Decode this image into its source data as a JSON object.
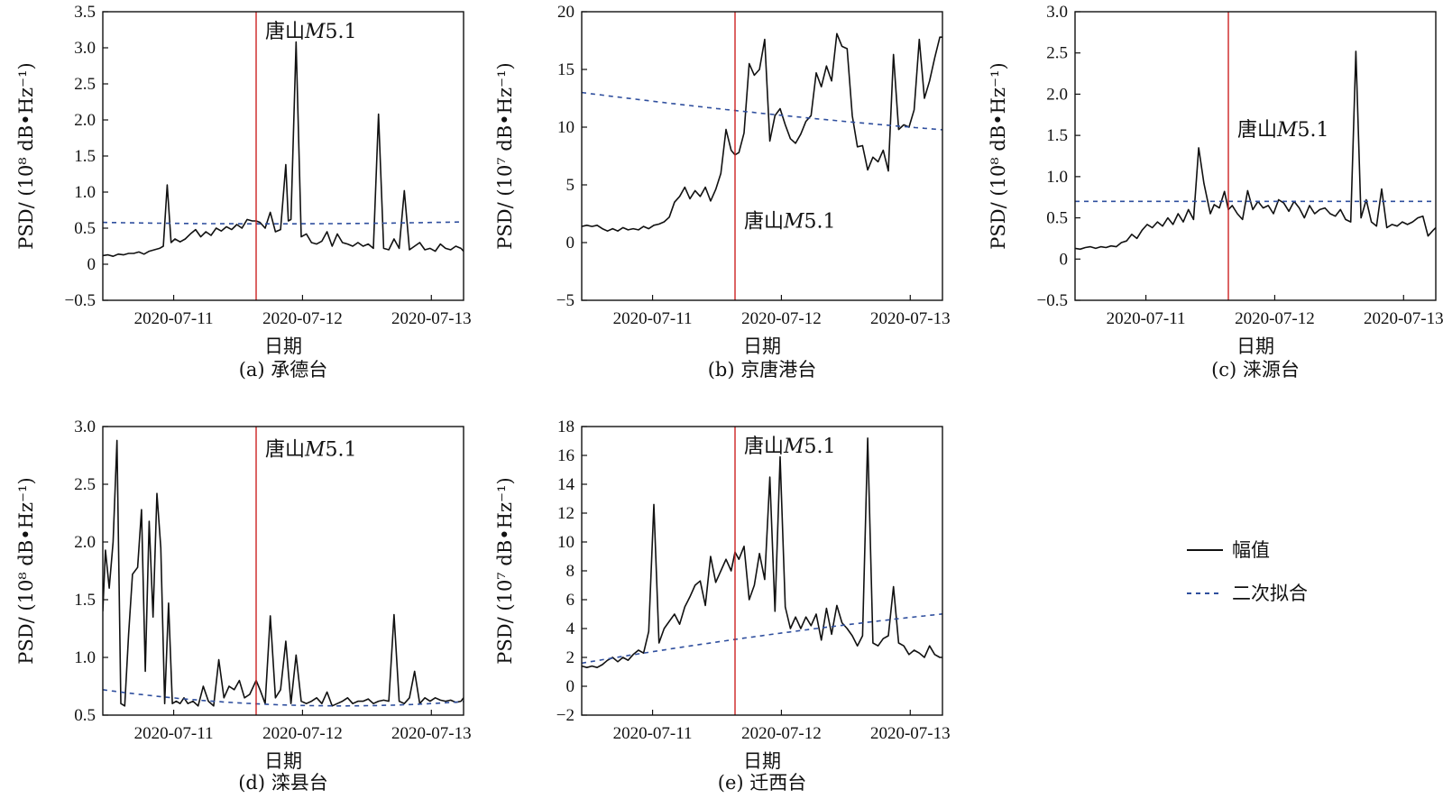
{
  "figure": {
    "legend": {
      "amplitude_label": "幅值",
      "fit_label": "二次拟合"
    },
    "colors": {
      "amplitude": "#111111",
      "fit": "#2f4f9e",
      "event": "#cc2222"
    }
  },
  "chart_data": [
    {
      "type": "line",
      "caption": "(a) 承德台",
      "xlabel": "日期",
      "ylabel": "PSD/ (10⁸ dB•Hz⁻¹)",
      "xticks": [
        "2020-07-11",
        "2020-07-12",
        "2020-07-13"
      ],
      "xtick_pos": [
        0.75,
        1.75,
        2.75
      ],
      "xlim": [
        0.2,
        3.0
      ],
      "ylim": [
        -0.5,
        3.5
      ],
      "yticks": [
        -0.5,
        0,
        0.5,
        1.0,
        1.5,
        2.0,
        2.5,
        3.0,
        3.5
      ],
      "yticklabels": [
        "−0.5",
        "0",
        "0.5",
        "1.0",
        "1.5",
        "2.0",
        "2.5",
        "3.0",
        "3.5"
      ],
      "event": {
        "x": 1.39,
        "label_prefix": "唐山",
        "label_mag": "M",
        "label_value": "5.1",
        "label_y": 3.24
      },
      "fit": [
        0,
        0.56,
        0.58,
        1.5
      ],
      "series": [
        {
          "x": [
            0.2,
            0.24,
            0.28,
            0.32,
            0.36,
            0.4,
            0.44,
            0.48,
            0.52,
            0.56,
            0.6,
            0.64,
            0.67,
            0.7,
            0.73,
            0.76,
            0.8,
            0.84,
            0.88,
            0.92,
            0.96,
            1.0,
            1.04,
            1.08,
            1.12,
            1.16,
            1.2,
            1.24,
            1.28,
            1.32,
            1.36,
            1.39,
            1.42,
            1.46,
            1.5,
            1.54,
            1.58,
            1.62,
            1.64,
            1.66,
            1.7,
            1.74,
            1.78,
            1.82,
            1.86,
            1.9,
            1.94,
            1.98,
            2.02,
            2.06,
            2.1,
            2.14,
            2.18,
            2.22,
            2.26,
            2.3,
            2.34,
            2.38,
            2.42,
            2.46,
            2.5,
            2.54,
            2.58,
            2.62,
            2.66,
            2.7,
            2.74,
            2.78,
            2.82,
            2.86,
            2.9,
            2.94,
            2.98,
            3.0
          ],
          "y": [
            0.12,
            0.13,
            0.11,
            0.14,
            0.13,
            0.15,
            0.15,
            0.17,
            0.14,
            0.18,
            0.2,
            0.22,
            0.25,
            1.1,
            0.3,
            0.35,
            0.31,
            0.35,
            0.42,
            0.48,
            0.38,
            0.45,
            0.4,
            0.5,
            0.46,
            0.52,
            0.48,
            0.55,
            0.5,
            0.62,
            0.6,
            0.6,
            0.58,
            0.5,
            0.72,
            0.45,
            0.48,
            1.38,
            0.6,
            0.62,
            3.08,
            0.38,
            0.42,
            0.3,
            0.28,
            0.32,
            0.45,
            0.25,
            0.42,
            0.3,
            0.28,
            0.25,
            0.3,
            0.25,
            0.28,
            0.22,
            2.08,
            0.22,
            0.2,
            0.35,
            0.22,
            1.02,
            0.2,
            0.25,
            0.3,
            0.2,
            0.22,
            0.18,
            0.28,
            0.22,
            0.2,
            0.25,
            0.22,
            0.18
          ]
        }
      ]
    },
    {
      "type": "line",
      "caption": "(b) 京唐港台",
      "xlabel": "日期",
      "ylabel": "PSD/ (10⁷ dB•Hz⁻¹)",
      "xticks": [
        "2020-07-11",
        "2020-07-12",
        "2020-07-13"
      ],
      "xtick_pos": [
        0.75,
        1.75,
        2.75
      ],
      "xlim": [
        0.2,
        3.0
      ],
      "ylim": [
        -5,
        20
      ],
      "yticks": [
        -5,
        0,
        5,
        10,
        15,
        20
      ],
      "yticklabels": [
        "−5",
        "0",
        "5",
        "10",
        "15",
        "20"
      ],
      "event": {
        "x": 1.39,
        "label_prefix": "唐山",
        "label_mag": "M",
        "label_value": "5.1",
        "label_y": 1.9
      },
      "fit": [
        0,
        7.8,
        13.0,
        7.5
      ],
      "series": [
        {
          "x": [
            0.2,
            0.24,
            0.28,
            0.32,
            0.36,
            0.4,
            0.44,
            0.48,
            0.52,
            0.56,
            0.6,
            0.64,
            0.68,
            0.72,
            0.76,
            0.8,
            0.84,
            0.88,
            0.92,
            0.96,
            1.0,
            1.04,
            1.08,
            1.12,
            1.16,
            1.2,
            1.24,
            1.28,
            1.32,
            1.36,
            1.39,
            1.42,
            1.46,
            1.5,
            1.54,
            1.58,
            1.62,
            1.66,
            1.7,
            1.74,
            1.78,
            1.82,
            1.86,
            1.9,
            1.94,
            1.98,
            2.02,
            2.06,
            2.1,
            2.14,
            2.18,
            2.22,
            2.26,
            2.3,
            2.34,
            2.38,
            2.42,
            2.46,
            2.5,
            2.54,
            2.58,
            2.62,
            2.66,
            2.7,
            2.74,
            2.78,
            2.82,
            2.86,
            2.9,
            2.94,
            2.98,
            3.0
          ],
          "y": [
            1.4,
            1.5,
            1.4,
            1.5,
            1.2,
            1.0,
            1.2,
            1.0,
            1.3,
            1.1,
            1.2,
            1.1,
            1.4,
            1.2,
            1.5,
            1.6,
            1.8,
            2.2,
            3.5,
            4.0,
            4.8,
            3.8,
            4.5,
            4.0,
            4.8,
            3.6,
            4.6,
            6.0,
            9.8,
            8.0,
            7.6,
            7.8,
            9.5,
            15.5,
            14.5,
            15.0,
            17.6,
            8.8,
            11.0,
            11.6,
            10.2,
            9.0,
            8.6,
            9.4,
            10.5,
            11.0,
            14.7,
            13.5,
            15.3,
            14.0,
            18.1,
            17.0,
            16.8,
            11.0,
            8.3,
            8.4,
            6.3,
            7.4,
            7.0,
            8.0,
            6.2,
            16.3,
            9.8,
            10.2,
            10.0,
            11.5,
            17.6,
            12.5,
            14.0,
            16.0,
            17.8,
            17.8
          ]
        }
      ]
    },
    {
      "type": "line",
      "caption": "(c) 涞源台",
      "xlabel": "日期",
      "ylabel": "PSD/ (10⁸ dB•Hz⁻¹)",
      "xticks": [
        "2020-07-11",
        "2020-07-12",
        "2020-07-13"
      ],
      "xtick_pos": [
        0.75,
        1.75,
        2.75
      ],
      "xlim": [
        0.2,
        3.0
      ],
      "ylim": [
        -0.5,
        3.0
      ],
      "yticks": [
        -0.5,
        0,
        0.5,
        1.0,
        1.5,
        2.0,
        2.5,
        3.0
      ],
      "yticklabels": [
        "−0.5",
        "0",
        "0.5",
        "1.0",
        "1.5",
        "2.0",
        "2.5",
        "3.0"
      ],
      "event": {
        "x": 1.39,
        "label_prefix": "唐山",
        "label_mag": "M",
        "label_value": "5.1",
        "label_y": 1.58
      },
      "fit": [
        0,
        0.7,
        0.7,
        2.0
      ],
      "series": [
        {
          "x": [
            0.2,
            0.24,
            0.28,
            0.32,
            0.36,
            0.4,
            0.44,
            0.48,
            0.52,
            0.56,
            0.6,
            0.64,
            0.68,
            0.72,
            0.76,
            0.8,
            0.84,
            0.88,
            0.92,
            0.96,
            1.0,
            1.04,
            1.08,
            1.12,
            1.16,
            1.2,
            1.25,
            1.28,
            1.32,
            1.36,
            1.39,
            1.42,
            1.46,
            1.5,
            1.54,
            1.58,
            1.62,
            1.66,
            1.7,
            1.74,
            1.78,
            1.82,
            1.86,
            1.9,
            1.94,
            1.98,
            2.02,
            2.06,
            2.1,
            2.14,
            2.18,
            2.22,
            2.26,
            2.3,
            2.34,
            2.38,
            2.42,
            2.46,
            2.5,
            2.54,
            2.58,
            2.62,
            2.66,
            2.7,
            2.74,
            2.78,
            2.82,
            2.86,
            2.9,
            2.94,
            2.98,
            3.0
          ],
          "y": [
            0.13,
            0.12,
            0.14,
            0.15,
            0.13,
            0.15,
            0.14,
            0.16,
            0.15,
            0.2,
            0.22,
            0.3,
            0.25,
            0.35,
            0.42,
            0.38,
            0.45,
            0.4,
            0.5,
            0.42,
            0.55,
            0.45,
            0.6,
            0.48,
            1.35,
            0.92,
            0.55,
            0.66,
            0.62,
            0.82,
            0.6,
            0.65,
            0.55,
            0.48,
            0.83,
            0.6,
            0.7,
            0.62,
            0.65,
            0.55,
            0.72,
            0.68,
            0.58,
            0.7,
            0.62,
            0.5,
            0.65,
            0.55,
            0.6,
            0.62,
            0.55,
            0.52,
            0.6,
            0.48,
            0.45,
            2.52,
            0.5,
            0.72,
            0.45,
            0.4,
            0.85,
            0.38,
            0.42,
            0.4,
            0.45,
            0.42,
            0.45,
            0.5,
            0.52,
            0.28,
            0.35,
            0.38
          ]
        }
      ]
    },
    {
      "type": "line",
      "caption": "(d) 滦县台",
      "xlabel": "日期",
      "ylabel": "PSD/ (10⁸ dB•Hz⁻¹)",
      "xticks": [
        "2020-07-11",
        "2020-07-12",
        "2020-07-13"
      ],
      "xtick_pos": [
        0.75,
        1.75,
        2.75
      ],
      "xlim": [
        0.2,
        3.0
      ],
      "ylim": [
        0.5,
        3.0
      ],
      "yticks": [
        0.5,
        1.0,
        1.5,
        2.0,
        2.5,
        3.0
      ],
      "yticklabels": [
        "0.5",
        "1.0",
        "1.5",
        "2.0",
        "2.5",
        "3.0"
      ],
      "event": {
        "x": 1.39,
        "label_prefix": "唐山",
        "label_mag": "M",
        "label_value": "5.1",
        "label_y": 2.81
      },
      "fit": [
        0,
        0.58,
        0.72,
        2.05
      ],
      "series": [
        {
          "x": [
            0.2,
            0.22,
            0.25,
            0.28,
            0.31,
            0.34,
            0.37,
            0.4,
            0.43,
            0.47,
            0.5,
            0.53,
            0.56,
            0.59,
            0.62,
            0.65,
            0.68,
            0.71,
            0.74,
            0.77,
            0.8,
            0.83,
            0.86,
            0.9,
            0.94,
            0.98,
            1.02,
            1.06,
            1.1,
            1.14,
            1.18,
            1.22,
            1.26,
            1.3,
            1.34,
            1.39,
            1.42,
            1.46,
            1.5,
            1.54,
            1.58,
            1.62,
            1.66,
            1.7,
            1.74,
            1.78,
            1.82,
            1.86,
            1.9,
            1.94,
            1.98,
            2.02,
            2.06,
            2.1,
            2.14,
            2.18,
            2.22,
            2.26,
            2.3,
            2.34,
            2.38,
            2.42,
            2.46,
            2.5,
            2.54,
            2.58,
            2.62,
            2.66,
            2.7,
            2.74,
            2.78,
            2.82,
            2.86,
            2.9,
            2.94,
            2.98,
            3.0
          ],
          "y": [
            1.4,
            1.93,
            1.6,
            2.0,
            2.88,
            0.6,
            0.58,
            1.2,
            1.72,
            1.78,
            2.28,
            0.88,
            2.18,
            1.35,
            2.42,
            1.95,
            0.6,
            1.47,
            0.6,
            0.62,
            0.6,
            0.65,
            0.6,
            0.62,
            0.58,
            0.75,
            0.62,
            0.58,
            0.98,
            0.65,
            0.75,
            0.72,
            0.8,
            0.65,
            0.68,
            0.8,
            0.72,
            0.6,
            1.36,
            0.65,
            0.72,
            1.14,
            0.6,
            1.02,
            0.62,
            0.6,
            0.62,
            0.65,
            0.6,
            0.7,
            0.58,
            0.6,
            0.62,
            0.65,
            0.6,
            0.62,
            0.62,
            0.64,
            0.6,
            0.62,
            0.63,
            0.62,
            1.37,
            0.62,
            0.6,
            0.65,
            0.88,
            0.6,
            0.65,
            0.62,
            0.65,
            0.63,
            0.62,
            0.63,
            0.61,
            0.62,
            0.65
          ]
        }
      ]
    },
    {
      "type": "line",
      "caption": "(e) 迁西台",
      "xlabel": "日期",
      "ylabel": "PSD/ (10⁷ dB•Hz⁻¹)",
      "xticks": [
        "2020-07-11",
        "2020-07-12",
        "2020-07-13"
      ],
      "xtick_pos": [
        0.75,
        1.75,
        2.75
      ],
      "xlim": [
        0.2,
        3.0
      ],
      "ylim": [
        -2,
        18
      ],
      "yticks": [
        -2,
        0,
        2,
        4,
        6,
        8,
        10,
        12,
        14,
        16,
        18
      ],
      "yticklabels": [
        "−2",
        "0",
        "2",
        "4",
        "6",
        "8",
        "10",
        "12",
        "14",
        "16",
        "18"
      ],
      "event": {
        "x": 1.39,
        "label_prefix": "唐山",
        "label_mag": "M",
        "label_value": "5.1",
        "label_y": 16.7
      },
      "fit": [
        0,
        7.1,
        1.6,
        7.5
      ],
      "series": [
        {
          "x": [
            0.2,
            0.24,
            0.28,
            0.32,
            0.36,
            0.4,
            0.44,
            0.48,
            0.52,
            0.56,
            0.6,
            0.64,
            0.68,
            0.72,
            0.76,
            0.8,
            0.84,
            0.88,
            0.92,
            0.96,
            1.0,
            1.04,
            1.08,
            1.12,
            1.16,
            1.2,
            1.24,
            1.28,
            1.32,
            1.36,
            1.39,
            1.42,
            1.46,
            1.5,
            1.54,
            1.58,
            1.62,
            1.66,
            1.7,
            1.74,
            1.78,
            1.82,
            1.86,
            1.9,
            1.94,
            1.98,
            2.02,
            2.06,
            2.1,
            2.14,
            2.18,
            2.22,
            2.26,
            2.3,
            2.34,
            2.38,
            2.42,
            2.46,
            2.5,
            2.54,
            2.58,
            2.62,
            2.66,
            2.7,
            2.74,
            2.78,
            2.82,
            2.86,
            2.9,
            2.94,
            2.98,
            3.0
          ],
          "y": [
            1.4,
            1.3,
            1.4,
            1.3,
            1.5,
            1.8,
            2.0,
            1.7,
            2.0,
            1.8,
            2.2,
            2.5,
            2.3,
            3.8,
            12.6,
            3.0,
            4.0,
            4.5,
            5.0,
            4.3,
            5.5,
            6.2,
            7.0,
            7.3,
            5.6,
            9.0,
            7.2,
            8.0,
            8.8,
            8.0,
            9.3,
            8.8,
            9.7,
            6.0,
            7.0,
            9.2,
            7.4,
            14.5,
            5.2,
            15.9,
            5.5,
            4.0,
            4.8,
            4.0,
            4.8,
            4.2,
            5.0,
            3.2,
            5.4,
            3.6,
            5.6,
            4.4,
            4.0,
            3.5,
            2.8,
            3.5,
            17.2,
            3.0,
            2.8,
            3.3,
            3.5,
            6.9,
            3.0,
            2.8,
            2.2,
            2.5,
            2.3,
            2.0,
            2.8,
            2.2,
            2.0,
            2.0
          ]
        }
      ]
    }
  ]
}
